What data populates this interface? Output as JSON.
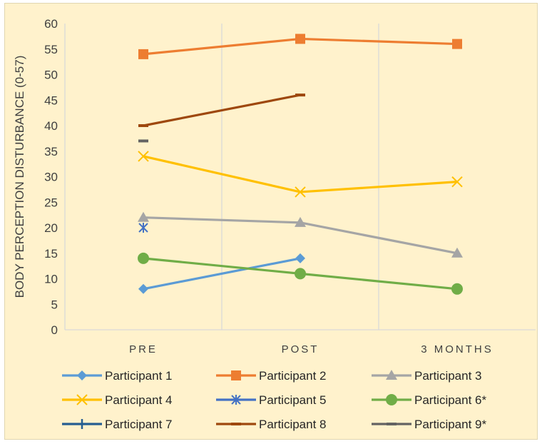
{
  "chart_data": {
    "type": "line",
    "categories": [
      "PRE",
      "POST",
      "3 MONTHS"
    ],
    "ylabel": "BODY PERCEPTION DISTURBANCE (0-57)",
    "xlabel": "",
    "ylim": [
      0,
      60
    ],
    "ytick_step": 5,
    "grid": "vertical category dividers",
    "legend_position": "bottom",
    "series": [
      {
        "name": "Participant 1",
        "values": [
          8,
          14,
          null
        ],
        "color": "#5b9bd5",
        "marker": "diamond"
      },
      {
        "name": "Participant 2",
        "values": [
          54,
          57,
          56
        ],
        "color": "#ed7d31",
        "marker": "square"
      },
      {
        "name": "Participant 3",
        "values": [
          22,
          21,
          15
        ],
        "color": "#a5a5a5",
        "marker": "triangle"
      },
      {
        "name": "Participant 4",
        "values": [
          34,
          27,
          29
        ],
        "color": "#ffc000",
        "marker": "x"
      },
      {
        "name": "Participant 5",
        "values": [
          20,
          null,
          null
        ],
        "color": "#4472c4",
        "marker": "star"
      },
      {
        "name": "Participant 6*",
        "values": [
          14,
          11,
          8
        ],
        "color": "#70ad47",
        "marker": "circle"
      },
      {
        "name": "Participant 7",
        "values": [
          null,
          null,
          null
        ],
        "color": "#255e91",
        "marker": "plus"
      },
      {
        "name": "Participant 8",
        "values": [
          40,
          46,
          null
        ],
        "color": "#9e480e",
        "marker": "dash"
      },
      {
        "name": "Participant 9*",
        "values": [
          37,
          null,
          null
        ],
        "color": "#636363",
        "marker": "dash"
      }
    ]
  }
}
